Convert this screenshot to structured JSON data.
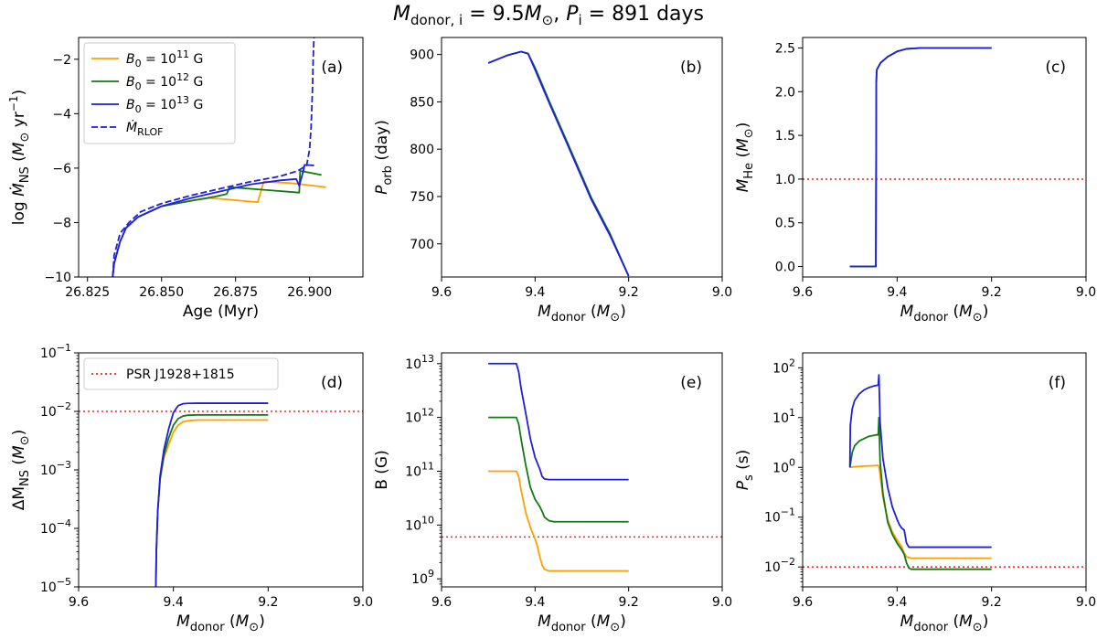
{
  "figure": {
    "title": "M_donor,i = 9.5M⊙, P_i = 891 days",
    "title_parts": [
      "M",
      "donor, i",
      " = 9.5",
      "M",
      "⊙",
      ",  ",
      "P",
      "i",
      " = 891 days"
    ]
  },
  "colors": {
    "B11": "#ff9f00",
    "B12": "#117a11",
    "B13": "#1f1fdd",
    "reference": "#ff2020"
  },
  "chart_data": [
    {
      "id": "a",
      "panel_label": "(a)",
      "type": "line",
      "xlabel": "Age (Myr)",
      "ylabel": "log Ṁ_NS (M⊙ yr⁻¹)",
      "ylabel_parts": [
        "log ",
        "Ṁ",
        "NS",
        " (",
        "M",
        "⊙",
        " yr",
        "−1",
        ")"
      ],
      "xlabel_parts": [
        "Age (Myr)"
      ],
      "xlim": [
        26.822,
        26.918
      ],
      "ylim": [
        -10,
        -1.2
      ],
      "xscale": "linear",
      "yscale": "linear",
      "xticks": [
        26.825,
        26.85,
        26.875,
        26.9
      ],
      "xtick_labels": [
        "26.825",
        "26.850",
        "26.875",
        "26.900"
      ],
      "yticks": [
        -10,
        -8,
        -6,
        -4,
        -2
      ],
      "ytick_labels": [
        "−10",
        "−8",
        "−6",
        "−4",
        "−2"
      ],
      "legend": {
        "position": "upper-left",
        "entries": [
          {
            "label_parts": [
              "B",
              "0",
              " = 10",
              "11",
              " G"
            ],
            "color_key": "B11",
            "dash": false
          },
          {
            "label_parts": [
              "B",
              "0",
              " = 10",
              "12",
              " G"
            ],
            "color_key": "B12",
            "dash": false
          },
          {
            "label_parts": [
              "B",
              "0",
              " = 10",
              "13",
              " G"
            ],
            "color_key": "B13",
            "dash": false
          },
          {
            "label_parts": [
              "Ṁ",
              "RLOF"
            ],
            "color_key": "B13",
            "dash": true
          }
        ]
      },
      "series": [
        {
          "color_key": "B11",
          "x": [
            26.8335,
            26.834,
            26.836,
            26.838,
            26.842,
            26.85,
            26.86,
            26.866,
            26.872,
            26.877,
            26.8825,
            26.8845,
            26.8935,
            26.9055
          ],
          "y": [
            -10,
            -9.5,
            -8.7,
            -8.2,
            -7.8,
            -7.4,
            -7.2,
            -7.1,
            -7.15,
            -7.2,
            -7.25,
            -6.5,
            -6.55,
            -6.7
          ]
        },
        {
          "color_key": "B12",
          "x": [
            26.8335,
            26.834,
            26.836,
            26.838,
            26.842,
            26.85,
            26.86,
            26.868,
            26.872,
            26.873,
            26.885,
            26.8965,
            26.8968,
            26.904
          ],
          "y": [
            -10,
            -9.5,
            -8.7,
            -8.2,
            -7.8,
            -7.4,
            -7.2,
            -7.05,
            -6.95,
            -6.7,
            -6.8,
            -6.9,
            -6.1,
            -6.25
          ]
        },
        {
          "color_key": "B13",
          "x": [
            26.8335,
            26.834,
            26.836,
            26.838,
            26.842,
            26.85,
            26.86,
            26.87,
            26.88,
            26.89,
            26.8955,
            26.8965,
            26.898,
            26.8983,
            26.9015
          ],
          "y": [
            -10,
            -9.5,
            -8.7,
            -8.2,
            -7.8,
            -7.4,
            -7.1,
            -6.85,
            -6.6,
            -6.45,
            -6.4,
            -6.65,
            -6.05,
            -5.88,
            -5.9
          ]
        },
        {
          "color_key": "B13",
          "dash": true,
          "x": [
            26.8335,
            26.834,
            26.836,
            26.839,
            26.843,
            26.85,
            26.86,
            26.87,
            26.88,
            26.89,
            26.896,
            26.899,
            26.9,
            26.9005,
            26.901,
            26.9012,
            26.9015
          ],
          "y": [
            -10,
            -9.2,
            -8.4,
            -8.0,
            -7.6,
            -7.3,
            -7.0,
            -6.75,
            -6.5,
            -6.3,
            -6.1,
            -5.9,
            -5.3,
            -4.5,
            -3.0,
            -2.0,
            -1.1
          ]
        }
      ]
    },
    {
      "id": "b",
      "panel_label": "(b)",
      "type": "line",
      "xlabel": "M_donor (M⊙)",
      "xlabel_parts": [
        "M",
        "donor",
        " (",
        "M",
        "⊙",
        ")"
      ],
      "ylabel": "P_orb (day)",
      "ylabel_parts": [
        "P",
        "orb",
        " (day)"
      ],
      "xlim": [
        9.6,
        9.0
      ],
      "ylim": [
        665,
        918
      ],
      "xscale": "linear",
      "yscale": "linear",
      "xticks": [
        9.6,
        9.4,
        9.2,
        9.0
      ],
      "xtick_labels": [
        "9.6",
        "9.4",
        "9.2",
        "9.0"
      ],
      "yticks": [
        700,
        750,
        800,
        850,
        900
      ],
      "ytick_labels": [
        "700",
        "750",
        "800",
        "850",
        "900"
      ],
      "series": [
        {
          "color_key": "B11",
          "x": [
            9.5,
            9.46,
            9.43,
            9.415,
            9.4,
            9.37,
            9.33,
            9.28,
            9.24,
            9.2
          ],
          "y": [
            891,
            899,
            903,
            901,
            885,
            850,
            805,
            748,
            710,
            666
          ]
        },
        {
          "color_key": "B12",
          "x": [
            9.5,
            9.46,
            9.43,
            9.415,
            9.4,
            9.37,
            9.33,
            9.28,
            9.24,
            9.2
          ],
          "y": [
            891,
            899,
            903,
            901,
            886,
            851,
            806,
            749,
            711,
            666
          ]
        },
        {
          "color_key": "B13",
          "x": [
            9.5,
            9.46,
            9.43,
            9.415,
            9.4,
            9.37,
            9.33,
            9.28,
            9.24,
            9.2
          ],
          "y": [
            891,
            899,
            903,
            901,
            884,
            849,
            804,
            747,
            709,
            666
          ]
        }
      ]
    },
    {
      "id": "c",
      "panel_label": "(c)",
      "type": "line",
      "xlabel": "M_donor (M⊙)",
      "xlabel_parts": [
        "M",
        "donor",
        " (",
        "M",
        "⊙",
        ")"
      ],
      "ylabel": "M_He (M⊙)",
      "ylabel_parts": [
        "M",
        "He",
        " (",
        "M",
        "⊙",
        ")"
      ],
      "xlim": [
        9.6,
        9.0
      ],
      "ylim": [
        -0.12,
        2.62
      ],
      "xscale": "linear",
      "yscale": "linear",
      "xticks": [
        9.6,
        9.4,
        9.2,
        9.0
      ],
      "xtick_labels": [
        "9.6",
        "9.4",
        "9.2",
        "9.0"
      ],
      "yticks": [
        0.0,
        0.5,
        1.0,
        1.5,
        2.0,
        2.5
      ],
      "ytick_labels": [
        "0.0",
        "0.5",
        "1.0",
        "1.5",
        "2.0",
        "2.5"
      ],
      "hline": {
        "y": 1.0,
        "color_key": "reference"
      },
      "series": [
        {
          "color_key": "B11",
          "x": [
            9.5,
            9.445,
            9.444,
            9.4435,
            9.443,
            9.435,
            9.42,
            9.4,
            9.38,
            9.35,
            9.3,
            9.2
          ],
          "y": [
            0,
            0,
            2.1,
            2.2,
            2.25,
            2.33,
            2.4,
            2.46,
            2.49,
            2.5,
            2.5,
            2.5
          ]
        },
        {
          "color_key": "B12",
          "x": [
            9.5,
            9.445,
            9.444,
            9.4435,
            9.443,
            9.435,
            9.42,
            9.4,
            9.38,
            9.35,
            9.3,
            9.2
          ],
          "y": [
            0,
            0,
            2.1,
            2.2,
            2.25,
            2.33,
            2.4,
            2.46,
            2.49,
            2.5,
            2.5,
            2.5
          ]
        },
        {
          "color_key": "B13",
          "x": [
            9.5,
            9.445,
            9.444,
            9.4435,
            9.443,
            9.435,
            9.42,
            9.4,
            9.38,
            9.35,
            9.3,
            9.2
          ],
          "y": [
            0,
            0,
            2.1,
            2.2,
            2.25,
            2.33,
            2.4,
            2.46,
            2.49,
            2.5,
            2.5,
            2.5
          ]
        }
      ]
    },
    {
      "id": "d",
      "panel_label": "(d)",
      "type": "line",
      "xlabel": "M_donor (M⊙)",
      "xlabel_parts": [
        "M",
        "donor",
        " (",
        "M",
        "⊙",
        ")"
      ],
      "ylabel": "ΔM_NS (M⊙)",
      "ylabel_parts": [
        "ΔM",
        "NS",
        " (",
        "M",
        "⊙",
        ")"
      ],
      "xlim": [
        9.6,
        9.0
      ],
      "ylim_log10": [
        -5,
        -1
      ],
      "xscale": "linear",
      "yscale": "log",
      "xticks": [
        9.6,
        9.4,
        9.2,
        9.0
      ],
      "xtick_labels": [
        "9.6",
        "9.4",
        "9.2",
        "9.0"
      ],
      "yticks_log10": [
        -5,
        -4,
        -3,
        -2,
        -1
      ],
      "ytick_base": "10",
      "ytick_exponents": [
        "−5",
        "−4",
        "−3",
        "−2",
        "−1"
      ],
      "hline": {
        "y": 0.01,
        "color_key": "reference"
      },
      "legend": {
        "position": "upper-left",
        "entries": [
          {
            "label_parts": [
              "PSR J1928+1815"
            ],
            "color_key": "reference",
            "dotted": true
          }
        ]
      },
      "series": [
        {
          "color_key": "B11",
          "x": [
            9.437,
            9.436,
            9.433,
            9.428,
            9.42,
            9.41,
            9.4,
            9.39,
            9.38,
            9.37,
            9.35,
            9.3,
            9.2
          ],
          "y": [
            1e-05,
            4e-05,
            0.0002,
            0.0007,
            0.0016,
            0.0027,
            0.0044,
            0.0058,
            0.0066,
            0.0069,
            0.0071,
            0.0071,
            0.0071
          ]
        },
        {
          "color_key": "B12",
          "x": [
            9.437,
            9.436,
            9.433,
            9.428,
            9.42,
            9.41,
            9.4,
            9.39,
            9.38,
            9.37,
            9.35,
            9.3,
            9.2
          ],
          "y": [
            1e-05,
            4e-05,
            0.0002,
            0.0007,
            0.0018,
            0.0035,
            0.0058,
            0.0075,
            0.0083,
            0.0086,
            0.0087,
            0.0087,
            0.0087
          ]
        },
        {
          "color_key": "B13",
          "x": [
            9.437,
            9.436,
            9.433,
            9.428,
            9.42,
            9.41,
            9.4,
            9.39,
            9.38,
            9.37,
            9.35,
            9.3,
            9.2
          ],
          "y": [
            1e-05,
            4e-05,
            0.0002,
            0.0008,
            0.0022,
            0.005,
            0.0095,
            0.0125,
            0.0135,
            0.0137,
            0.0138,
            0.0138,
            0.0138
          ]
        }
      ]
    },
    {
      "id": "e",
      "panel_label": "(e)",
      "type": "line",
      "xlabel": "M_donor (M⊙)",
      "xlabel_parts": [
        "M",
        "donor",
        " (",
        "M",
        "⊙",
        ")"
      ],
      "ylabel": "B (G)",
      "ylabel_parts": [
        "B (G)"
      ],
      "xlim": [
        9.6,
        9.0
      ],
      "ylim_log10": [
        8.85,
        13.2
      ],
      "xscale": "linear",
      "yscale": "log",
      "xticks": [
        9.6,
        9.4,
        9.2,
        9.0
      ],
      "xtick_labels": [
        "9.6",
        "9.4",
        "9.2",
        "9.0"
      ],
      "yticks_log10": [
        9,
        10,
        11,
        12,
        13
      ],
      "ytick_base": "10",
      "ytick_exponents": [
        "9",
        "10",
        "11",
        "12",
        "13"
      ],
      "hline": {
        "y": 6000000000.0,
        "color_key": "reference"
      },
      "series": [
        {
          "color_key": "B11",
          "x": [
            9.5,
            9.44,
            9.435,
            9.43,
            9.42,
            9.41,
            9.405,
            9.4,
            9.395,
            9.39,
            9.385,
            9.38,
            9.37,
            9.3,
            9.2
          ],
          "y": [
            100000000000.0,
            100000000000.0,
            80000000000.0,
            45000000000.0,
            17000000000.0,
            9000000000.0,
            7000000000.0,
            5500000000.0,
            4000000000.0,
            2600000000.0,
            1800000000.0,
            1500000000.0,
            1400000000.0,
            1400000000.0,
            1400000000.0
          ]
        },
        {
          "color_key": "B12",
          "x": [
            9.5,
            9.44,
            9.435,
            9.43,
            9.42,
            9.41,
            9.4,
            9.39,
            9.385,
            9.38,
            9.37,
            9.36,
            9.3,
            9.2
          ],
          "y": [
            1000000000000.0,
            1000000000000.0,
            750000000000.0,
            400000000000.0,
            130000000000.0,
            50000000000.0,
            30000000000.0,
            22000000000.0,
            18000000000.0,
            14000000000.0,
            12000000000.0,
            11500000000.0,
            11500000000.0,
            11500000000.0
          ]
        },
        {
          "color_key": "B13",
          "x": [
            9.5,
            9.44,
            9.435,
            9.43,
            9.42,
            9.41,
            9.4,
            9.39,
            9.385,
            9.38,
            9.37,
            9.36,
            9.3,
            9.2
          ],
          "y": [
            10000000000000.0,
            10000000000000.0,
            7000000000000.0,
            3500000000000.0,
            1200000000000.0,
            400000000000.0,
            180000000000.0,
            110000000000.0,
            80000000000.0,
            72000000000.0,
            70000000000.0,
            70000000000.0,
            70000000000.0,
            70000000000.0
          ]
        }
      ]
    },
    {
      "id": "f",
      "panel_label": "(f)",
      "type": "line",
      "xlabel": "M_donor (M⊙)",
      "xlabel_parts": [
        "M",
        "donor",
        " (",
        "M",
        "⊙",
        ")"
      ],
      "ylabel": "P_s (s)",
      "ylabel_parts": [
        "P",
        "s",
        " (s)"
      ],
      "xlim": [
        9.6,
        9.0
      ],
      "ylim_log10": [
        -2.4,
        2.3
      ],
      "xscale": "linear",
      "yscale": "log",
      "xticks": [
        9.6,
        9.4,
        9.2,
        9.0
      ],
      "xtick_labels": [
        "9.6",
        "9.4",
        "9.2",
        "9.0"
      ],
      "yticks_log10": [
        -2,
        -1,
        0,
        1,
        2
      ],
      "ytick_base": "10",
      "ytick_exponents": [
        "−2",
        "−1",
        "0",
        "1",
        "2"
      ],
      "hline": {
        "y": 0.01,
        "color_key": "reference"
      },
      "series": [
        {
          "color_key": "B11",
          "x": [
            9.5,
            9.49,
            9.47,
            9.45,
            9.44,
            9.438,
            9.435,
            9.43,
            9.42,
            9.41,
            9.4,
            9.39,
            9.385,
            9.38,
            9.37,
            9.3,
            9.2
          ],
          "y": [
            1.0,
            1.03,
            1.06,
            1.08,
            1.1,
            1.0,
            0.6,
            0.25,
            0.09,
            0.05,
            0.035,
            0.025,
            0.019,
            0.016,
            0.015,
            0.015,
            0.015
          ]
        },
        {
          "color_key": "B12",
          "x": [
            9.5,
            9.495,
            9.49,
            9.48,
            9.46,
            9.445,
            9.44,
            9.4385,
            9.436,
            9.43,
            9.42,
            9.41,
            9.4,
            9.39,
            9.385,
            9.38,
            9.375,
            9.37,
            9.3,
            9.2
          ],
          "y": [
            1.0,
            2.0,
            2.7,
            3.4,
            4.2,
            4.5,
            4.5,
            10.0,
            1.3,
            0.3,
            0.08,
            0.045,
            0.03,
            0.022,
            0.018,
            0.012,
            0.0095,
            0.009,
            0.009,
            0.009
          ]
        },
        {
          "color_key": "B13",
          "x": [
            9.5,
            9.499,
            9.495,
            9.49,
            9.48,
            9.47,
            9.46,
            9.45,
            9.44,
            9.4385,
            9.436,
            9.43,
            9.42,
            9.41,
            9.4,
            9.395,
            9.39,
            9.385,
            9.38,
            9.375,
            9.37,
            9.3,
            9.2
          ],
          "y": [
            1.0,
            7.0,
            15.0,
            22.0,
            30.0,
            36.0,
            40.0,
            43.0,
            45.0,
            72.0,
            8.0,
            1.5,
            0.4,
            0.16,
            0.09,
            0.07,
            0.06,
            0.055,
            0.03,
            0.025,
            0.025,
            0.025,
            0.025
          ]
        }
      ]
    }
  ]
}
